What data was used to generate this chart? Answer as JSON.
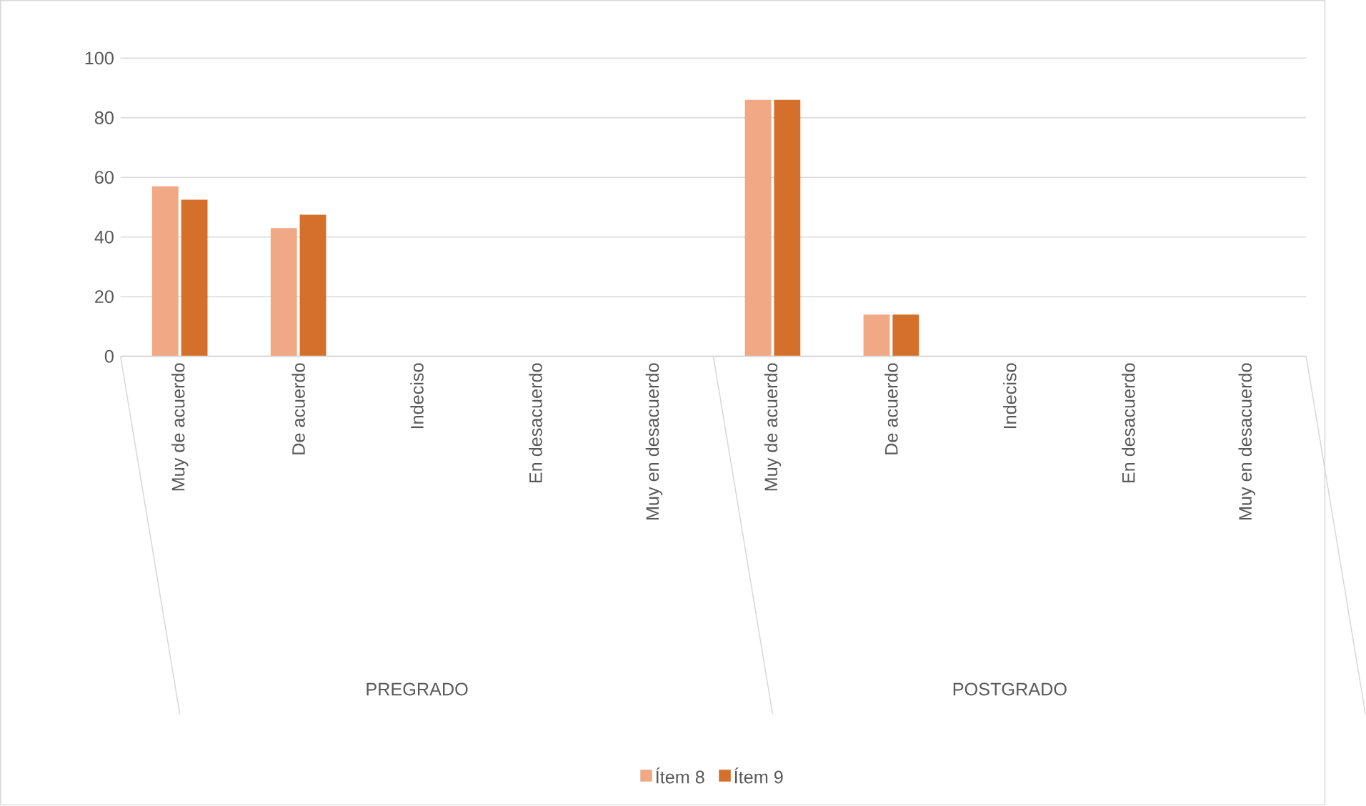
{
  "chart_data": {
    "type": "bar",
    "categories": [
      "Muy de acuerdo",
      "De acuerdo",
      "Indeciso",
      "En desacuerdo",
      "Muy en desacuerdo",
      "Muy de acuerdo",
      "De acuerdo",
      "Indeciso",
      "En desacuerdo",
      "Muy en desacuerdo"
    ],
    "series": [
      {
        "name": "Ítem 8",
        "color": "#f1a985",
        "values": [
          57,
          43,
          0,
          0,
          0,
          86,
          14,
          0,
          0,
          0
        ]
      },
      {
        "name": "Ítem 9",
        "color": "#d4702b",
        "values": [
          52.5,
          47.5,
          0,
          0,
          0,
          86,
          14,
          0,
          0,
          0
        ]
      }
    ],
    "annotations": [
      "PREGRADO",
      "POSTGRADO"
    ],
    "ylim": [
      0,
      100
    ],
    "yticks": [
      0,
      20,
      40,
      60,
      80,
      100
    ],
    "grid": "y",
    "legend": "bottom"
  }
}
